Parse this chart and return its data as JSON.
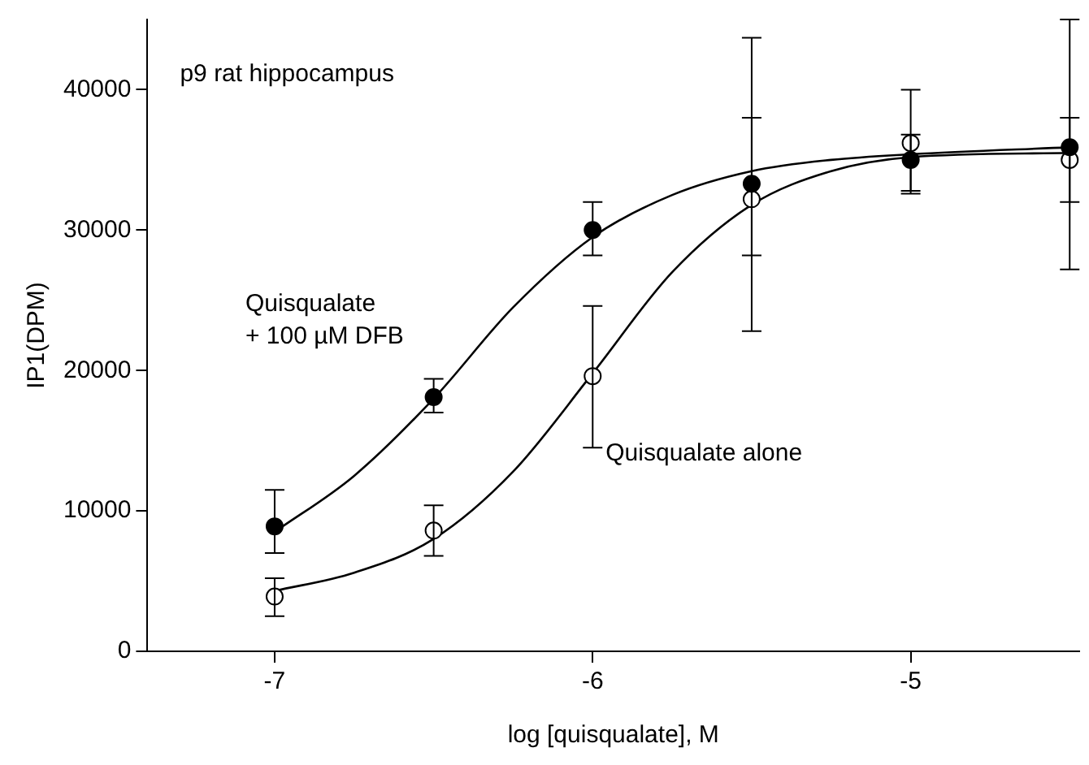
{
  "chart_data": {
    "type": "scatter",
    "xlabel": "log [quisqualate], M",
    "ylabel": "IP1(DPM)",
    "xlim": [
      -7.4,
      -4.47
    ],
    "xticks": [
      -7,
      -6,
      -5
    ],
    "ylim": [
      0,
      45000
    ],
    "yticks": [
      0,
      10000,
      20000,
      30000,
      40000
    ],
    "grid": false,
    "legend": false,
    "marker": "circle",
    "annotations": [
      "p9 rat hippocampus"
    ],
    "series": [
      {
        "name": "Quisqualate\n+ 100 µM DFB",
        "color": "#000000",
        "x": [
          -7,
          -6.5,
          -6,
          -5.5,
          -5,
          -4.5
        ],
        "values": [
          8900,
          18100,
          30000,
          33300,
          35000,
          35900
        ],
        "errors": [
          [
            7000,
            11500
          ],
          [
            17000,
            19400
          ],
          [
            28200,
            32000
          ],
          [
            28200,
            38000
          ],
          [
            32800,
            36800
          ],
          [
            32000,
            38000
          ]
        ]
      },
      {
        "name": "Quisqualate alone",
        "color": "#000000",
        "x": [
          -7,
          -6.5,
          -6,
          -5.5,
          -5,
          -4.5
        ],
        "values": [
          3900,
          8600,
          19600,
          32200,
          36200,
          35000
        ],
        "errors": [
          [
            2500,
            5200
          ],
          [
            6800,
            10400
          ],
          [
            14500,
            24600
          ],
          [
            22800,
            43700
          ],
          [
            32600,
            40000
          ],
          [
            27200,
            45000
          ]
        ]
      },
      {
        "type": "line",
        "color": "#000000",
        "marker": "none",
        "x": [
          -7,
          -6.75,
          -6.5,
          -6.25,
          -6,
          -5.75,
          -5.5,
          -5.25,
          -5,
          -4.5
        ],
        "values": [
          8500,
          12500,
          18000,
          24500,
          29500,
          32500,
          34200,
          35000,
          35400,
          35900
        ]
      },
      {
        "type": "line",
        "color": "#000000",
        "marker": "none",
        "x": [
          -7,
          -6.75,
          -6.5,
          -6.25,
          -6,
          -5.75,
          -5.5,
          -5.25,
          -5,
          -4.5
        ],
        "values": [
          4300,
          5600,
          8000,
          12800,
          19800,
          27000,
          31800,
          34200,
          35200,
          35500
        ]
      }
    ]
  }
}
